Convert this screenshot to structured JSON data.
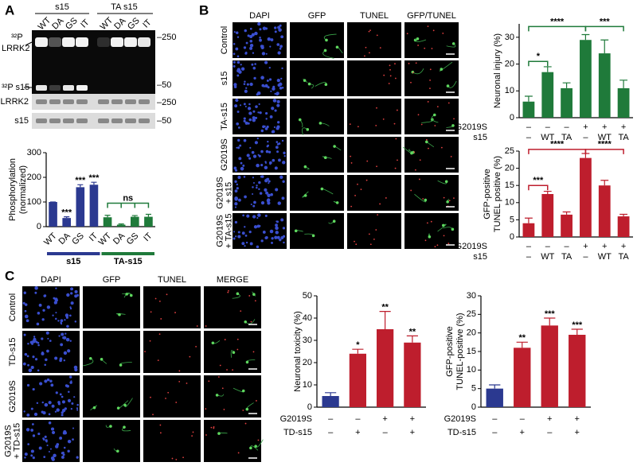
{
  "figure": {
    "panel_labels": [
      "A",
      "B",
      "C"
    ],
    "blot": {
      "groups": [
        "s15",
        "TA s15"
      ],
      "lanes": [
        "WT",
        "DA",
        "GS",
        "IT",
        "WT",
        "DA",
        "GS",
        "IT"
      ],
      "rows": [
        "³²P",
        "LRRK2",
        "³²P s15",
        "LRRK2",
        "s15"
      ],
      "markers": [
        "–250",
        "–50",
        "–250",
        "–50"
      ]
    },
    "imaging_b": {
      "columns": [
        "DAPI",
        "GFP",
        "TUNEL",
        "GFP/TUNEL"
      ],
      "rows": [
        [
          "Control"
        ],
        [
          "s15"
        ],
        [
          "TA-s15"
        ],
        [
          "G2019S"
        ],
        [
          "G2019S",
          "+ s15"
        ],
        [
          "G2019S",
          "+ TA-s15"
        ]
      ]
    },
    "imaging_c": {
      "columns": [
        "DAPI",
        "GFP",
        "TUNEL",
        "MERGE"
      ],
      "rows": [
        [
          "Control"
        ],
        [
          "TD-s15"
        ],
        [
          "G2019S"
        ],
        [
          "G2019S",
          "+ TD-s15"
        ]
      ]
    }
  },
  "chart_data": [
    {
      "type": "bar",
      "ylabel": [
        "Phosphorylation",
        "(normalized)"
      ],
      "categories": [
        "WT",
        "DA",
        "GS",
        "IT",
        "WT",
        "DA",
        "GS",
        "IT"
      ],
      "values": [
        100,
        35,
        160,
        170,
        38,
        8,
        40,
        40
      ],
      "errors": [
        0,
        5,
        10,
        10,
        8,
        3,
        5,
        10
      ],
      "colors": [
        "#2b3990",
        "#2b3990",
        "#2b3990",
        "#2b3990",
        "#1f7a3a",
        "#1f7a3a",
        "#1f7a3a",
        "#1f7a3a"
      ],
      "stars": [
        null,
        "***",
        "***",
        "***",
        null,
        null,
        null,
        null
      ],
      "brackets": [
        "ns"
      ],
      "bracket_color": "#1f7a3a",
      "groups": [
        {
          "name": "s15",
          "color": "#2b3990"
        },
        {
          "name": "TA-s15",
          "color": "#1f7a3a"
        }
      ],
      "ylim": [
        0,
        300
      ],
      "yticks": [
        0,
        100,
        200,
        300
      ]
    },
    {
      "type": "bar",
      "ylabel": [
        "Neuronal injury (%)"
      ],
      "values": [
        6,
        17,
        11,
        29,
        24,
        11
      ],
      "errors": [
        2,
        2,
        2,
        2,
        5,
        3
      ],
      "color": "#1f7a3a",
      "conditions": [
        {
          "name": "G2019S",
          "marks": [
            "–",
            "–",
            "–",
            "+",
            "+",
            "+"
          ]
        },
        {
          "name": "s15",
          "marks": [
            "–",
            "WT",
            "TA",
            "–",
            "WT",
            "TA"
          ]
        }
      ],
      "brackets": [
        "*",
        "****",
        "***"
      ],
      "bracket_color": "#1f7a3a",
      "ylim": [
        0,
        35
      ],
      "yticks": [
        0,
        10,
        20,
        30
      ]
    },
    {
      "type": "bar",
      "ylabel": [
        "GFP-positive",
        "TUNEL positive (%)"
      ],
      "values": [
        4,
        12.5,
        6.5,
        23,
        15,
        6
      ],
      "errors": [
        1.5,
        0.8,
        0.8,
        1.3,
        1.5,
        0.6
      ],
      "color": "#be1e2d",
      "conditions": [
        {
          "name": "G2019S",
          "marks": [
            "–",
            "–",
            "–",
            "+",
            "+",
            "+"
          ]
        },
        {
          "name": "s15",
          "marks": [
            "–",
            "WT",
            "TA",
            "–",
            "WT",
            "TA"
          ]
        }
      ],
      "brackets": [
        "***",
        "****",
        "****"
      ],
      "bracket_color": "#be1e2d",
      "ylim": [
        0,
        25
      ],
      "yticks": [
        0,
        5,
        10,
        15,
        20,
        25
      ]
    },
    {
      "type": "bar",
      "ylabel": [
        "Neuronal toxicity (%)"
      ],
      "values": [
        5,
        24,
        35,
        29
      ],
      "errors": [
        1.5,
        2,
        8,
        3
      ],
      "colors": [
        "#2b3990",
        "#be1e2d",
        "#be1e2d",
        "#be1e2d"
      ],
      "stars": [
        null,
        "*",
        "**",
        "**"
      ],
      "conditions": [
        {
          "name": "G2019S",
          "marks": [
            "–",
            "–",
            "+",
            "+"
          ]
        },
        {
          "name": "TD-s15",
          "marks": [
            "–",
            "+",
            "–",
            "+"
          ]
        }
      ],
      "ylim": [
        0,
        50
      ],
      "yticks": [
        0,
        10,
        20,
        30,
        40,
        50
      ]
    },
    {
      "type": "bar",
      "ylabel": [
        "GFP-positive",
        "TUNEL-positive (%)"
      ],
      "values": [
        5,
        16,
        22,
        19.5
      ],
      "errors": [
        1,
        1.5,
        2,
        1.5
      ],
      "colors": [
        "#2b3990",
        "#be1e2d",
        "#be1e2d",
        "#be1e2d"
      ],
      "stars": [
        null,
        "**",
        "***",
        "***"
      ],
      "conditions": [
        {
          "name": "G2019S",
          "marks": [
            "–",
            "–",
            "+",
            "+"
          ]
        },
        {
          "name": "TD-s15",
          "marks": [
            "–",
            "+",
            "–",
            "+"
          ]
        }
      ],
      "ylim": [
        0,
        30
      ],
      "yticks": [
        0,
        5,
        10,
        15,
        20,
        25,
        30
      ]
    }
  ]
}
